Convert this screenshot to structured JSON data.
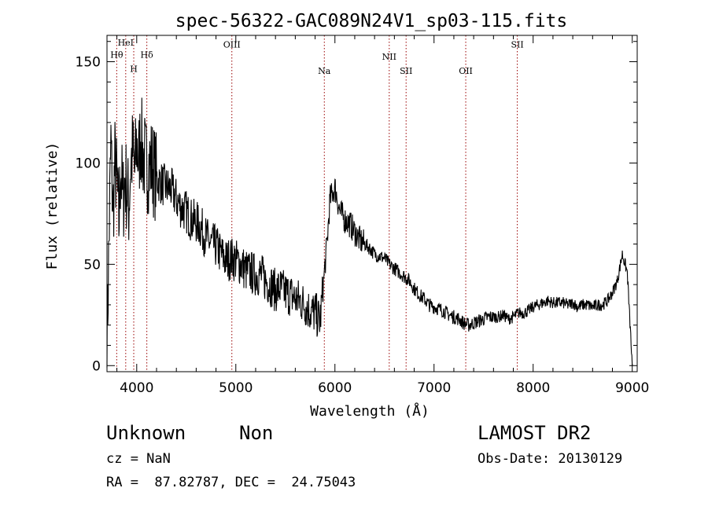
{
  "chart_data": {
    "type": "line",
    "title": "spec-56322-GAC089N24V1_sp03-115.fits",
    "xlabel": "Wavelength (Å)",
    "ylabel": "Flux (relative)",
    "xlim": [
      3700,
      9050
    ],
    "ylim": [
      -3,
      163
    ],
    "xticks": [
      4000,
      5000,
      6000,
      7000,
      8000,
      9000
    ],
    "xtick_labels": [
      "4000",
      "5000",
      "6000",
      "7000",
      "8000",
      "9000"
    ],
    "yticks": [
      0,
      50,
      100,
      150
    ],
    "ytick_labels": [
      "0",
      "50",
      "100",
      "150"
    ],
    "grid": false,
    "line_color": "#000000",
    "marker_color": "#990000",
    "lines": [
      {
        "label": "Hθ",
        "wavelength": 3798,
        "label_y": 152
      },
      {
        "label": "HeI",
        "wavelength": 3889,
        "label_y": 158
      },
      {
        "label": "H",
        "wavelength": 3970,
        "label_y": 145
      },
      {
        "label": "Hδ",
        "wavelength": 4102,
        "label_y": 152
      },
      {
        "label": "OIII",
        "wavelength": 4960,
        "label_y": 157
      },
      {
        "label": "Na",
        "wavelength": 5893,
        "label_y": 144
      },
      {
        "label": "NII",
        "wavelength": 6548,
        "label_y": 151
      },
      {
        "label": "SII",
        "wavelength": 6718,
        "label_y": 144
      },
      {
        "label": "OII",
        "wavelength": 7320,
        "label_y": 144
      },
      {
        "label": "SII",
        "wavelength": 7840,
        "label_y": 157
      }
    ],
    "series": [
      {
        "x": [
          3700,
          3720,
          3740,
          3760,
          3780,
          3800,
          3820,
          3840,
          3860,
          3880,
          3900,
          3920,
          3940,
          3960,
          3980,
          4000,
          4020,
          4040,
          4060,
          4080,
          4100,
          4150,
          4200,
          4250,
          4300,
          4350,
          4400,
          4450,
          4500,
          4550,
          4600,
          4650,
          4700,
          4750,
          4800,
          4850,
          4900,
          4950,
          5000,
          5050,
          5100,
          5150,
          5200,
          5250,
          5300,
          5350,
          5400,
          5450,
          5500,
          5550,
          5600,
          5650,
          5700,
          5750,
          5800,
          5850,
          5880,
          5900,
          5920,
          5950,
          6000,
          6050,
          6100,
          6150,
          6200,
          6250,
          6300,
          6350,
          6400,
          6450,
          6500,
          6550,
          6600,
          6650,
          6700,
          6750,
          6800,
          6850,
          6900,
          6950,
          7000,
          7050,
          7100,
          7150,
          7200,
          7250,
          7300,
          7350,
          7400,
          7450,
          7500,
          7550,
          7600,
          7650,
          7700,
          7750,
          7800,
          7850,
          7900,
          7950,
          8000,
          8050,
          8100,
          8150,
          8200,
          8250,
          8300,
          8350,
          8400,
          8450,
          8500,
          8550,
          8600,
          8650,
          8700,
          8750,
          8800,
          8850,
          8900,
          8950,
          9000
        ],
        "y": [
          10,
          60,
          110,
          75,
          100,
          90,
          70,
          100,
          80,
          92,
          88,
          78,
          100,
          105,
          95,
          110,
          100,
          115,
          104,
          102,
          98,
          100,
          92,
          90,
          88,
          87,
          82,
          78,
          76,
          72,
          71,
          68,
          63,
          60,
          59,
          55,
          52,
          53,
          52,
          50,
          47,
          46,
          45,
          45,
          42,
          40,
          37,
          38,
          36,
          35,
          33,
          32,
          30,
          27,
          26,
          22,
          38,
          50,
          60,
          82,
          88,
          76,
          72,
          70,
          66,
          62,
          60,
          58,
          55,
          54,
          53,
          50,
          48,
          46,
          44,
          42,
          38,
          35,
          33,
          30,
          29,
          28,
          27,
          25,
          24,
          23,
          21,
          20,
          21,
          22,
          23,
          24,
          24,
          24,
          25,
          23,
          24,
          26,
          26,
          27,
          29,
          30,
          31,
          32,
          31,
          31,
          31,
          30,
          31,
          29,
          30,
          30,
          29,
          30,
          30,
          32,
          36,
          42,
          55,
          46,
          0
        ]
      }
    ]
  },
  "info": {
    "object_class": "Unknown",
    "subclass": "Non",
    "survey": "LAMOST DR2",
    "redshift": "cz = NaN",
    "obs_date": "Obs-Date: 20130129",
    "coords": "RA =  87.82787, DEC =  24.75043"
  }
}
